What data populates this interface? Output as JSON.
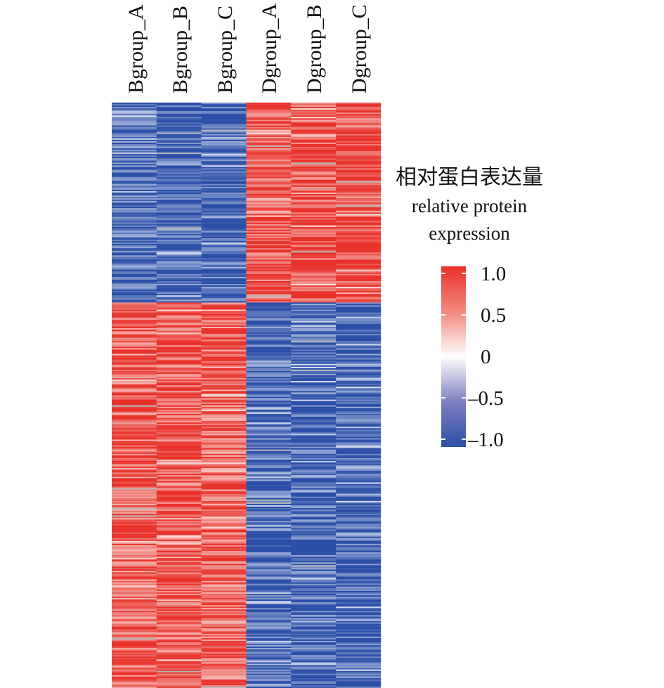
{
  "chart_data": {
    "type": "heatmap",
    "columns": [
      "Bgroup_A",
      "Bgroup_B",
      "Bgroup_C",
      "Dgroup_A",
      "Dgroup_B",
      "Dgroup_C"
    ],
    "row_clusters": [
      {
        "cluster": "upper",
        "rows": 140,
        "mean_values": [
          -0.8,
          -0.85,
          -0.85,
          0.8,
          0.85,
          0.9
        ]
      },
      {
        "cluster": "lower",
        "rows": 270,
        "mean_values": [
          0.75,
          0.8,
          0.7,
          -0.8,
          -0.85,
          -0.85
        ]
      }
    ],
    "color_range": [
      -1.0,
      1.0
    ],
    "legend": {
      "title_cn": "相对蛋白表达量",
      "title_en_line1": "relative protein",
      "title_en_line2": "expression",
      "ticks": [
        1.0,
        0.5,
        0,
        -0.5,
        -1.0
      ],
      "tick_labels": [
        "1.0",
        "0.5",
        "0",
        "–0.5",
        "–1.0"
      ],
      "colors": {
        "high": "#e8322a",
        "mid": "#ffffff",
        "low": "#2c4fa8"
      }
    }
  }
}
